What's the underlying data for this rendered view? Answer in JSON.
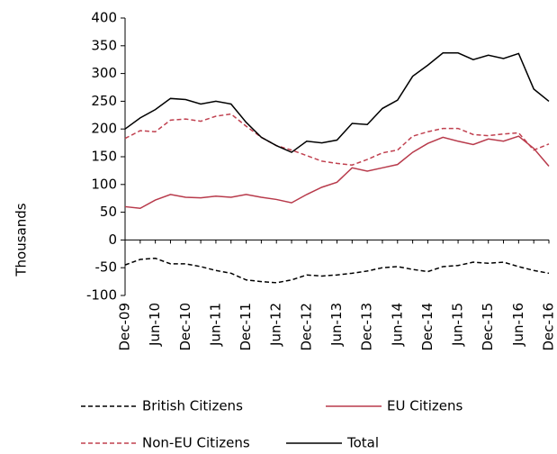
{
  "chart_data": {
    "type": "line",
    "y_label": "Thousands",
    "categories": [
      "Dec-09",
      null,
      "Jun-10",
      null,
      "Dec-10",
      null,
      "Jun-11",
      null,
      "Dec-11",
      null,
      "Jun-12",
      null,
      "Dec-12",
      null,
      "Jun-13",
      null,
      "Dec-13",
      null,
      "Jun-14",
      null,
      "Dec-14",
      null,
      "Jun-15",
      null,
      "Dec-15",
      null,
      "Jun-16",
      null,
      "Dec-16"
    ],
    "series": [
      {
        "name": "British Citizens",
        "color": "#000000",
        "dashed": true,
        "values": [
          -45,
          -35,
          -33,
          -43,
          -43,
          -48,
          -55,
          -60,
          -72,
          -75,
          -77,
          -72,
          -63,
          -65,
          -63,
          -60,
          -56,
          -50,
          -48,
          -53,
          -57,
          -48,
          -46,
          -40,
          -42,
          -40,
          -48,
          -55,
          -60
        ]
      },
      {
        "name": "EU Citizens",
        "color": "#b83a4b",
        "dashed": false,
        "values": [
          60,
          57,
          72,
          82,
          77,
          76,
          79,
          77,
          82,
          77,
          73,
          67,
          82,
          95,
          104,
          130,
          124,
          130,
          136,
          158,
          174,
          185,
          178,
          172,
          182,
          178,
          187,
          165,
          133
        ]
      },
      {
        "name": "Non-EU Citizens",
        "color": "#c0404f",
        "dashed": true,
        "values": [
          183,
          197,
          195,
          216,
          218,
          214,
          223,
          227,
          205,
          185,
          170,
          162,
          152,
          142,
          138,
          135,
          145,
          157,
          162,
          187,
          195,
          201,
          201,
          190,
          188,
          191,
          193,
          162,
          173
        ]
      },
      {
        "name": "Total",
        "color": "#000000",
        "dashed": false,
        "values": [
          200,
          220,
          235,
          255,
          253,
          245,
          250,
          245,
          212,
          185,
          170,
          158,
          178,
          175,
          180,
          210,
          208,
          237,
          252,
          295,
          315,
          337,
          337,
          325,
          333,
          327,
          336,
          272,
          250
        ]
      }
    ],
    "ylim": [
      -100,
      400
    ],
    "yticks": [
      -100,
      -50,
      0,
      50,
      100,
      150,
      200,
      250,
      300,
      350,
      400
    ],
    "grid": false,
    "legend": "bottom"
  }
}
